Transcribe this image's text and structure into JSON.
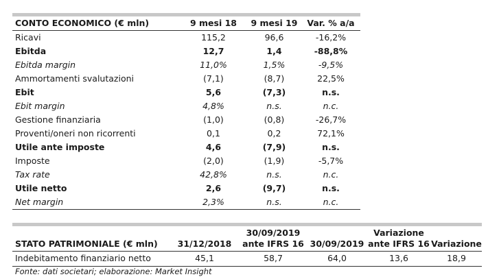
{
  "income_statement": {
    "headers": [
      "CONTO ECONOMICO (€ mln)",
      "9 mesi 18",
      "9 mesi 19",
      "Var. % a/a"
    ],
    "rows": [
      {
        "style": "normal",
        "cells": [
          "Ricavi",
          "115,2",
          "96,6",
          "-16,2%"
        ]
      },
      {
        "style": "bold",
        "cells": [
          "Ebitda",
          "12,7",
          "1,4",
          "-88,8%"
        ]
      },
      {
        "style": "italic",
        "cells": [
          "Ebitda margin",
          "11,0%",
          "1,5%",
          "-9,5%"
        ]
      },
      {
        "style": "normal",
        "cells": [
          "Ammortamenti svalutazioni",
          "(7,1)",
          "(8,7)",
          "22,5%"
        ]
      },
      {
        "style": "bold",
        "cells": [
          "Ebit",
          "5,6",
          "(7,3)",
          "n.s."
        ]
      },
      {
        "style": "italic",
        "cells": [
          "Ebit margin",
          "4,8%",
          "n.s.",
          "n.c."
        ]
      },
      {
        "style": "normal",
        "cells": [
          "Gestione finanziaria",
          "(1,0)",
          "(0,8)",
          "-26,7%"
        ]
      },
      {
        "style": "normal",
        "cells": [
          "Proventi/oneri non ricorrenti",
          "0,1",
          "0,2",
          "72,1%"
        ]
      },
      {
        "style": "bold",
        "cells": [
          "Utile ante imposte",
          "4,6",
          "(7,9)",
          "n.s."
        ]
      },
      {
        "style": "normal",
        "cells": [
          "Imposte",
          "(2,0)",
          "(1,9)",
          "-5,7%"
        ]
      },
      {
        "style": "italic",
        "cells": [
          "Tax rate",
          "42,8%",
          "n.s.",
          "n.c."
        ]
      },
      {
        "style": "bold",
        "cells": [
          "Utile netto",
          "2,6",
          "(9,7)",
          "n.s."
        ]
      },
      {
        "style": "italic",
        "cells": [
          "Net margin",
          "2,3%",
          "n.s.",
          "n.c."
        ]
      }
    ]
  },
  "balance_sheet": {
    "headers": [
      "STATO PATRIMONIALE (€ mln)",
      "31/12/2018",
      "30/09/2019\nante IFRS 16",
      "30/09/2019",
      "Variazione\nante IFRS 16",
      "Variazione"
    ],
    "rows": [
      {
        "cells": [
          "Indebitamento finanziario netto",
          "45,1",
          "58,7",
          "64,0",
          "13,6",
          "18,9"
        ]
      }
    ]
  },
  "source_note": "Fonte: dati societari; elaborazione: Market Insight"
}
